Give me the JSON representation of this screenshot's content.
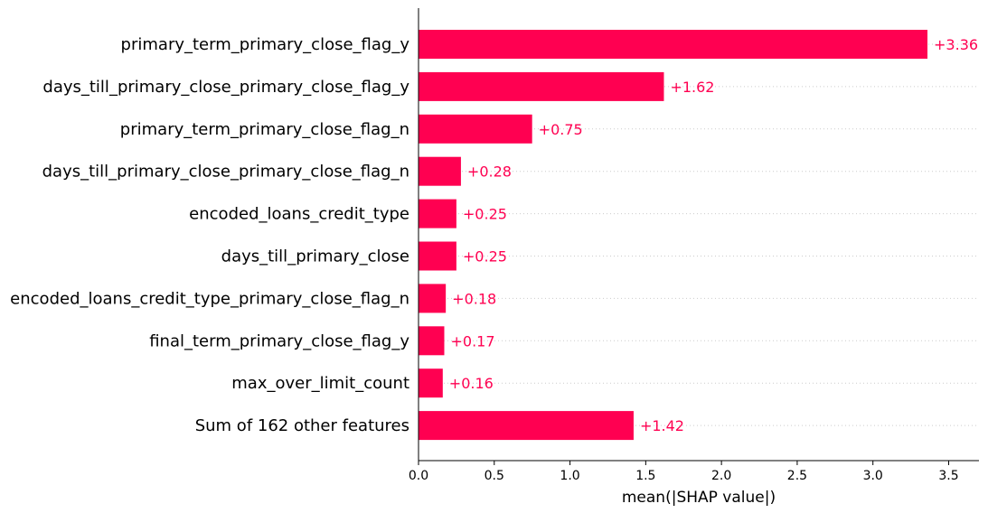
{
  "chart_data": {
    "type": "bar",
    "orientation": "horizontal",
    "categories": [
      "primary_term_primary_close_flag_y",
      "days_till_primary_close_primary_close_flag_y",
      "primary_term_primary_close_flag_n",
      "days_till_primary_close_primary_close_flag_n",
      "encoded_loans_credit_type",
      "days_till_primary_close",
      "encoded_loans_credit_type_primary_close_flag_n",
      "final_term_primary_close_flag_y",
      "max_over_limit_count",
      "Sum of 162 other features"
    ],
    "values": [
      3.36,
      1.62,
      0.75,
      0.28,
      0.25,
      0.25,
      0.18,
      0.17,
      0.16,
      1.42
    ],
    "value_labels": [
      "+3.36",
      "+1.62",
      "+0.75",
      "+0.28",
      "+0.25",
      "+0.25",
      "+0.18",
      "+0.17",
      "+0.16",
      "+1.42"
    ],
    "xlabel": "mean(|SHAP value|)",
    "xlim": [
      0,
      3.7
    ],
    "xticks": [
      0.0,
      0.5,
      1.0,
      1.5,
      2.0,
      2.5,
      3.0,
      3.5
    ],
    "xtick_labels": [
      "0.0",
      "0.5",
      "1.0",
      "1.5",
      "2.0",
      "2.5",
      "3.0",
      "3.5"
    ],
    "grid": "dotted horizontal guide lines",
    "bar_color": "#ff0051",
    "label_color": "#ff0051"
  }
}
